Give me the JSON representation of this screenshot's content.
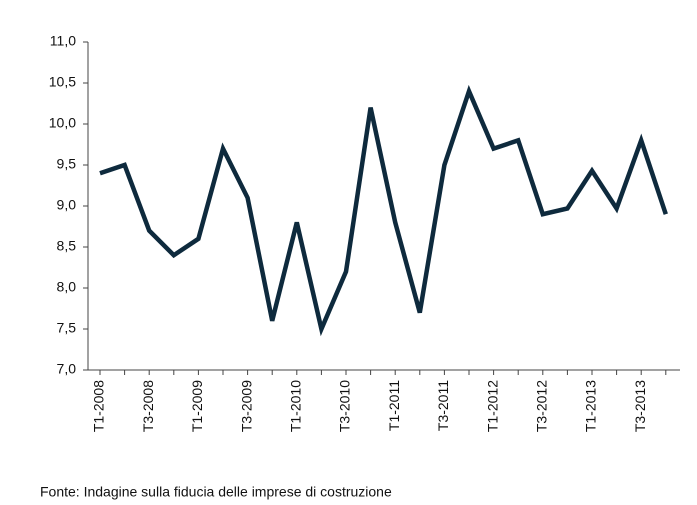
{
  "chart_data": {
    "type": "line",
    "categories": [
      "T1-2008",
      null,
      "T3-2008",
      null,
      "T1-2009",
      null,
      "T3-2009",
      null,
      "T1-2010",
      null,
      "T3-2010",
      null,
      "T1-2011",
      null,
      "T3-2011",
      null,
      "T1-2012",
      null,
      "T3-2012",
      null,
      "T1-2013",
      null,
      "T3-2013",
      null
    ],
    "series": [
      {
        "name": null,
        "color": "#0e2a3d",
        "values": [
          9.4,
          9.5,
          8.7,
          8.4,
          8.6,
          9.7,
          9.1,
          7.6,
          8.8,
          7.5,
          8.2,
          10.2,
          8.8,
          7.7,
          9.5,
          10.4,
          9.7,
          9.8,
          8.9,
          8.97,
          9.43,
          8.97,
          9.8,
          8.9
        ]
      }
    ],
    "ylim": [
      7,
      11
    ],
    "yticks": [
      {
        "value": 7,
        "label": "7,0"
      },
      {
        "value": 7.5,
        "label": "7,5"
      },
      {
        "value": 8,
        "label": "8,0"
      },
      {
        "value": 8.5,
        "label": "8,5"
      },
      {
        "value": 9,
        "label": "9,0"
      },
      {
        "value": 9.5,
        "label": "9,5"
      },
      {
        "value": 10,
        "label": "10,0"
      },
      {
        "value": 10.5,
        "label": "10,5"
      },
      {
        "value": 11,
        "label": "11,0"
      }
    ],
    "grid": false,
    "note": "Fonte: Indagine sulla fiducia delle imprese di costruzione"
  }
}
